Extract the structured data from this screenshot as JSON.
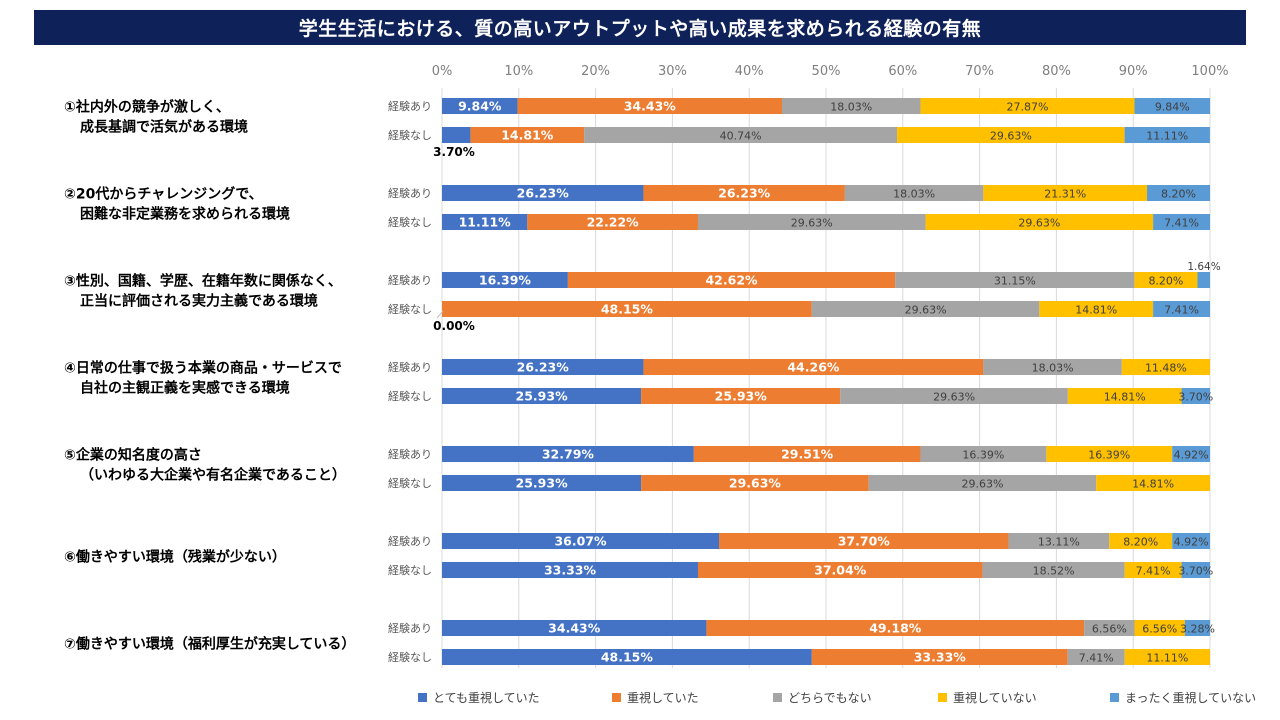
{
  "title": "学生生活における、質の高いアウトプットや高い成果を求められる経験の有無",
  "chart_data": {
    "type": "bar",
    "orientation": "horizontal",
    "stacked": "percent",
    "title": "学生生活における、質の高いアウトプットや高い成果を求められる経験の有無",
    "xlabel": "",
    "ylabel": "",
    "xlim": [
      0,
      100
    ],
    "x_ticks": [
      "0%",
      "10%",
      "20%",
      "30%",
      "40%",
      "50%",
      "60%",
      "70%",
      "80%",
      "90%",
      "100%"
    ],
    "grid": true,
    "legend_position": "bottom",
    "series": [
      {
        "name": "とても重視していた",
        "color": "#4472c4"
      },
      {
        "name": "重視していた",
        "color": "#ed7d31"
      },
      {
        "name": "どちらでもない",
        "color": "#a5a5a5"
      },
      {
        "name": "重視していない",
        "color": "#ffc000"
      },
      {
        "name": "まったく重視していない",
        "color": "#5b9bd5"
      }
    ],
    "groups": [
      {
        "label_lines": [
          "①社内外の競争が激しく、",
          "成長基調で活気がある環境"
        ],
        "rows": [
          {
            "label": "経験あり",
            "values": [
              9.84,
              34.43,
              18.03,
              27.87,
              9.84
            ]
          },
          {
            "label": "経験なし",
            "values": [
              3.7,
              14.81,
              40.74,
              29.63,
              11.11
            ]
          }
        ]
      },
      {
        "label_lines": [
          "②20代からチャレンジングで、",
          "困難な非定業務を求められる環境"
        ],
        "rows": [
          {
            "label": "経験あり",
            "values": [
              26.23,
              26.23,
              18.03,
              21.31,
              8.2
            ]
          },
          {
            "label": "経験なし",
            "values": [
              11.11,
              22.22,
              29.63,
              29.63,
              7.41
            ]
          }
        ]
      },
      {
        "label_lines": [
          "③性別、国籍、学歴、在籍年数に関係なく、",
          "正当に評価される実力主義である環境"
        ],
        "rows": [
          {
            "label": "経験あり",
            "values": [
              16.39,
              42.62,
              31.15,
              8.2,
              1.64
            ]
          },
          {
            "label": "経験なし",
            "values": [
              0.0,
              48.15,
              29.63,
              14.81,
              7.41
            ]
          }
        ]
      },
      {
        "label_lines": [
          "④日常の仕事で扱う本業の商品・サービスで",
          "自社の主観正義を実感できる環境"
        ],
        "rows": [
          {
            "label": "経験あり",
            "values": [
              26.23,
              44.26,
              18.03,
              11.48,
              0
            ]
          },
          {
            "label": "経験なし",
            "values": [
              25.93,
              25.93,
              29.63,
              14.81,
              3.7
            ]
          }
        ]
      },
      {
        "label_lines": [
          "⑤企業の知名度の高さ",
          "（いわゆる大企業や有名企業であること）"
        ],
        "rows": [
          {
            "label": "経験あり",
            "values": [
              32.79,
              29.51,
              16.39,
              16.39,
              4.92
            ]
          },
          {
            "label": "経験なし",
            "values": [
              25.93,
              29.63,
              29.63,
              14.81,
              0
            ]
          }
        ]
      },
      {
        "label_lines": [
          "⑥働きやすい環境（残業が少ない）"
        ],
        "rows": [
          {
            "label": "経験あり",
            "values": [
              36.07,
              37.7,
              13.11,
              8.2,
              4.92
            ]
          },
          {
            "label": "経験なし",
            "values": [
              33.33,
              37.04,
              18.52,
              7.41,
              3.7
            ]
          }
        ]
      },
      {
        "label_lines": [
          "⑦働きやすい環境（福利厚生が充実している）"
        ],
        "rows": [
          {
            "label": "経験あり",
            "values": [
              34.43,
              49.18,
              6.56,
              6.56,
              3.28
            ]
          },
          {
            "label": "経験なし",
            "values": [
              48.15,
              33.33,
              7.41,
              11.11,
              0
            ]
          }
        ]
      }
    ],
    "outside_labels": [
      {
        "group": 0,
        "row": 1,
        "series": 0,
        "text": "3.70%",
        "placement": "below-left"
      },
      {
        "group": 2,
        "row": 0,
        "series": 4,
        "text": "1.64%",
        "placement": "above-right"
      },
      {
        "group": 2,
        "row": 1,
        "series": 0,
        "text": "0.00%",
        "placement": "below-left"
      }
    ]
  }
}
